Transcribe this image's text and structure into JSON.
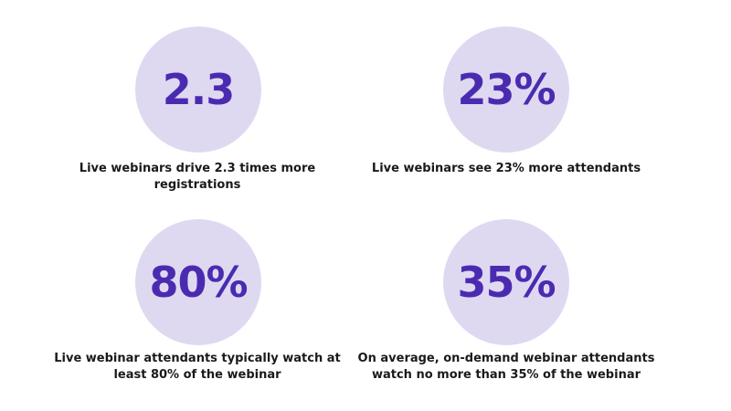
{
  "stats": [
    {
      "value": "2.3",
      "caption_line1": "Live webinars drive 2.3 times more",
      "caption_line2": "registrations"
    },
    {
      "value": "23%",
      "caption_line1": "Live webinars see 23% more attendants",
      "caption_line2": ""
    },
    {
      "value": "80%",
      "caption_line1": "Live webinar attendants typically watch at",
      "caption_line2": "least 80% of the webinar"
    },
    {
      "value": "35%",
      "caption_line1": "On average, on-demand webinar attendants",
      "caption_line2": "watch no more than 35% of the webinar"
    }
  ],
  "colors": {
    "circle_fill": "#ded9f1",
    "value_text": "#4a2bb0",
    "caption_text": "#1a1a1a"
  }
}
